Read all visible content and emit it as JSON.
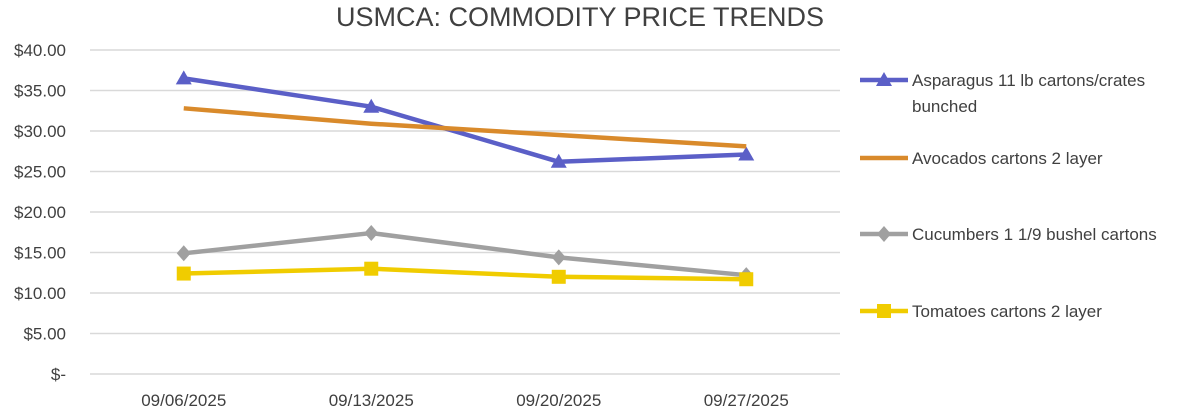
{
  "chart_data": {
    "type": "line",
    "title": "USMCA: COMMODITY PRICE TRENDS",
    "xlabel": "",
    "ylabel": "",
    "categories": [
      "09/06/2025",
      "09/13/2025",
      "09/20/2025",
      "09/27/2025"
    ],
    "ylim": [
      0,
      40
    ],
    "yticks": [
      0,
      5,
      10,
      15,
      20,
      25,
      30,
      35,
      40
    ],
    "ytick_labels": [
      "$-",
      "$5.00",
      "$10.00",
      "$15.00",
      "$20.00",
      "$25.00",
      "$30.00",
      "$35.00",
      "$40.00"
    ],
    "grid": true,
    "legend_position": "right",
    "series": [
      {
        "name": "Asparagus 11 lb cartons/crates bunched",
        "legend_lines": [
          "Asparagus 11 lb cartons/crates",
          "bunched"
        ],
        "color": "#5B5FC7",
        "marker": "triangle",
        "values": [
          36.5,
          33.0,
          26.2,
          27.1
        ]
      },
      {
        "name": "Avocados cartons 2 layer",
        "legend_lines": [
          "Avocados cartons 2 layer"
        ],
        "color": "#D98A2B",
        "marker": "none",
        "values": [
          32.8,
          30.9,
          29.5,
          28.1
        ]
      },
      {
        "name": "Cucumbers 1 1/9 bushel cartons",
        "legend_lines": [
          "Cucumbers 1 1/9 bushel cartons"
        ],
        "color": "#A0A0A0",
        "marker": "diamond",
        "values": [
          14.9,
          17.4,
          14.4,
          12.2
        ]
      },
      {
        "name": "Tomatoes cartons 2 layer",
        "legend_lines": [
          "Tomatoes cartons 2 layer"
        ],
        "color": "#F0CC00",
        "marker": "square",
        "values": [
          12.4,
          13.0,
          12.0,
          11.7
        ]
      }
    ]
  }
}
